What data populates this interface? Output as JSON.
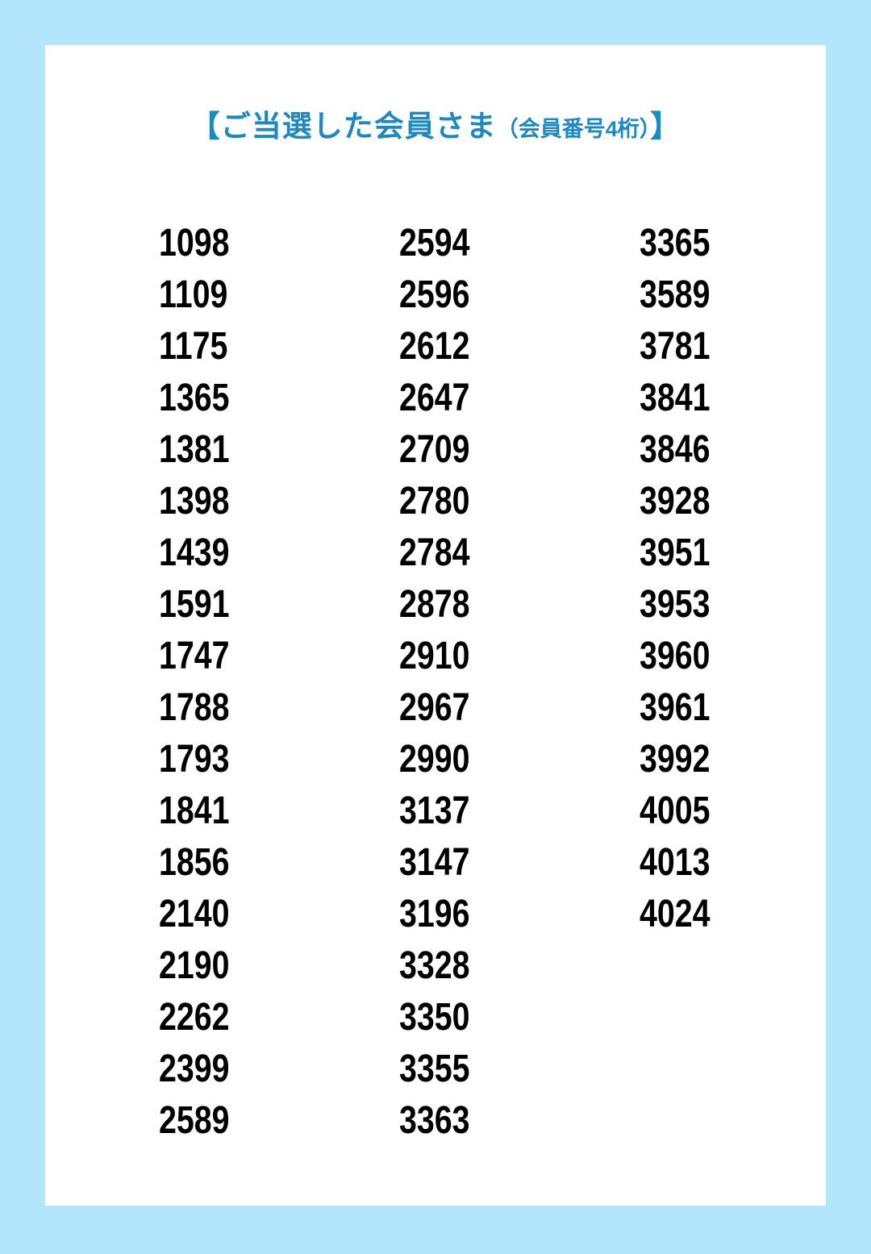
{
  "title": {
    "open_bracket": "【",
    "main": "ご当選した会員さま",
    "sub": "（会員番号4桁）",
    "close_bracket": "】"
  },
  "colors": {
    "background": "#b3e5fc",
    "panel": "#ffffff",
    "title": "#1e88c0",
    "numbers": "#000000"
  },
  "columns": [
    [
      "1098",
      "1109",
      "1175",
      "1365",
      "1381",
      "1398",
      "1439",
      "1591",
      "1747",
      "1788",
      "1793",
      "1841",
      "1856",
      "2140",
      "2190",
      "2262",
      "2399",
      "2589"
    ],
    [
      "2594",
      "2596",
      "2612",
      "2647",
      "2709",
      "2780",
      "2784",
      "2878",
      "2910",
      "2967",
      "2990",
      "3137",
      "3147",
      "3196",
      "3328",
      "3350",
      "3355",
      "3363"
    ],
    [
      "3365",
      "3589",
      "3781",
      "3841",
      "3846",
      "3928",
      "3951",
      "3953",
      "3960",
      "3961",
      "3992",
      "4005",
      "4013",
      "4024"
    ]
  ]
}
